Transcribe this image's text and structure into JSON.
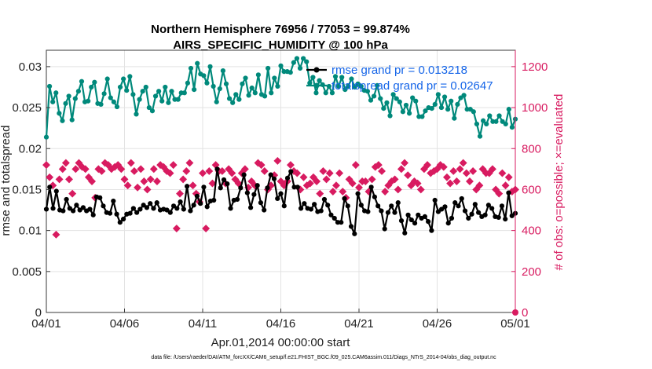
{
  "chart_data": {
    "type": "line",
    "title": "Northern Hemisphere 76956 / 77053 = 99.874%",
    "subtitle": "AIRS_SPECIFIC_HUMIDITY @ 100 hPa",
    "xlabel": "Apr.01,2014 00:00:00 start",
    "ylabel": "rmse and totalspread",
    "y2label": "# of obs: o=possible; ×=evaluated",
    "xlim": [
      0,
      30
    ],
    "ylim": [
      0,
      0.032
    ],
    "y2lim": [
      0,
      1280
    ],
    "x_ticks": [
      0,
      5,
      10,
      15,
      20,
      25,
      30
    ],
    "x_tick_labels": [
      "04/01",
      "04/06",
      "04/11",
      "04/16",
      "04/21",
      "04/26",
      "05/01"
    ],
    "y_ticks": [
      0,
      0.005,
      0.01,
      0.015,
      0.02,
      0.025,
      0.03
    ],
    "y_tick_labels": [
      "0",
      "0.005",
      "0.01",
      "0.015",
      "0.02",
      "0.025",
      "0.03"
    ],
    "y2_ticks": [
      0,
      200,
      400,
      600,
      800,
      1000,
      1200
    ],
    "y2_tick_labels": [
      "0",
      "200",
      "400",
      "600",
      "800",
      "1000",
      "1200"
    ],
    "grid": true,
    "legend_placement": "top-right",
    "legend": [
      "rmse grand pr = 0.013218",
      "totalspread grand pr = 0.02647"
    ],
    "colors": {
      "rmse": "#000000",
      "totalspread": "#00897b",
      "obs": "#d81b60",
      "legend_text": "#1565e8",
      "grid": "#e3e3e3"
    },
    "series": [
      {
        "values": [
          0.0126,
          0.0153,
          0.0127,
          0.0148,
          0.0125,
          0.0124,
          0.0138,
          0.0127,
          0.0124,
          0.0131,
          0.0125,
          0.0128,
          0.0124,
          0.0126,
          0.0119,
          0.0141,
          0.014,
          0.013,
          0.0122,
          0.0121,
          0.0136,
          0.012,
          0.011,
          0.0114,
          0.012,
          0.0121,
          0.0127,
          0.0122,
          0.0126,
          0.0131,
          0.0128,
          0.0133,
          0.0127,
          0.0134,
          0.0125,
          0.0126,
          0.0125,
          0.0122,
          0.013,
          0.0127,
          0.0135,
          0.0126,
          0.0154,
          0.0124,
          0.0131,
          0.0142,
          0.0133,
          0.0153,
          0.0129,
          0.0136,
          0.0137,
          0.0175,
          0.0152,
          0.0162,
          0.0157,
          0.0127,
          0.0137,
          0.0138,
          0.0152,
          0.0168,
          0.0146,
          0.0128,
          0.0144,
          0.0155,
          0.0134,
          0.0125,
          0.0152,
          0.0168,
          0.0163,
          0.0139,
          0.0145,
          0.013,
          0.0164,
          0.0172,
          0.0153,
          0.0153,
          0.0127,
          0.0133,
          0.0127,
          0.0126,
          0.0132,
          0.0123,
          0.0124,
          0.0138,
          0.0131,
          0.0119,
          0.0115,
          0.011,
          0.011,
          0.0139,
          0.013,
          0.0105,
          0.0096,
          0.0145,
          0.0131,
          0.0124,
          0.0123,
          0.0153,
          0.0141,
          0.013,
          0.0124,
          0.0102,
          0.0122,
          0.013,
          0.0122,
          0.0134,
          0.0112,
          0.0097,
          0.0119,
          0.0113,
          0.0109,
          0.0119,
          0.0115,
          0.0117,
          0.0111,
          0.01,
          0.0137,
          0.0123,
          0.0126,
          0.0129,
          0.0109,
          0.0115,
          0.0134,
          0.013,
          0.0139,
          0.0124,
          0.0115,
          0.012,
          0.0132,
          0.0122,
          0.0117,
          0.0119,
          0.0131,
          0.0127,
          0.0117,
          0.0116,
          0.013,
          0.0114,
          0.0146,
          0.0118,
          0.0121
        ],
        "x_start": 0,
        "x_end": 30
      },
      {
        "values": [
          0.0214,
          0.0276,
          0.0257,
          0.0268,
          0.0243,
          0.0234,
          0.0255,
          0.0264,
          0.0235,
          0.0261,
          0.027,
          0.0282,
          0.0257,
          0.0258,
          0.0275,
          0.0281,
          0.0255,
          0.0254,
          0.0267,
          0.0285,
          0.0262,
          0.0257,
          0.0251,
          0.0275,
          0.0285,
          0.0271,
          0.0288,
          0.0266,
          0.0242,
          0.026,
          0.027,
          0.0275,
          0.025,
          0.0246,
          0.0264,
          0.027,
          0.0258,
          0.0275,
          0.0256,
          0.027,
          0.026,
          0.026,
          0.0268,
          0.0268,
          0.028,
          0.0298,
          0.0272,
          0.0304,
          0.0291,
          0.0289,
          0.028,
          0.03,
          0.0276,
          0.0257,
          0.0273,
          0.0295,
          0.0279,
          0.0261,
          0.0256,
          0.0266,
          0.026,
          0.0279,
          0.0286,
          0.0265,
          0.0274,
          0.0268,
          0.029,
          0.0266,
          0.0264,
          0.0298,
          0.0268,
          0.0286,
          0.0276,
          0.0301,
          0.0294,
          0.0294,
          0.0293,
          0.0305,
          0.031,
          0.0298,
          0.031,
          0.0306,
          0.028,
          0.0287,
          0.0268,
          0.0283,
          0.0278,
          0.0268,
          0.0276,
          0.0268,
          0.0288,
          0.0276,
          0.0287,
          0.0272,
          0.0276,
          0.0285,
          0.0275,
          0.0279,
          0.0276,
          0.0271,
          0.027,
          0.0259,
          0.0264,
          0.0277,
          0.0261,
          0.0249,
          0.0256,
          0.024,
          0.0266,
          0.0261,
          0.0257,
          0.0245,
          0.0253,
          0.0243,
          0.0262,
          0.0258,
          0.0239,
          0.0239,
          0.0246,
          0.025,
          0.0249,
          0.0254,
          0.0266,
          0.025,
          0.0263,
          0.0248,
          0.0258,
          0.0237,
          0.0254,
          0.0262,
          0.0265,
          0.0248,
          0.0248,
          0.0245,
          0.023,
          0.0215,
          0.0234,
          0.023,
          0.024,
          0.0233,
          0.0233,
          0.024,
          0.0233,
          0.023,
          0.0248,
          0.0226,
          0.0236
        ],
        "x_start": 0,
        "x_end": 30
      },
      {
        "values": [
          720,
          660,
          620,
          380,
          650,
          700,
          730,
          650,
          580,
          700,
          730,
          710,
          700,
          660,
          640,
          560,
          700,
          690,
          730,
          720,
          700,
          710,
          720,
          700,
          650,
          620,
          730,
          690,
          610,
          700,
          640,
          600,
          650,
          700,
          640,
          720,
          710,
          690,
          680,
          720,
          410,
          580,
          650,
          690,
          730,
          620,
          580,
          540,
          680,
          410,
          690,
          630,
          720,
          690,
          690,
          630,
          700,
          680,
          650,
          630,
          680,
          700,
          610,
          640,
          620,
          730,
          720,
          690,
          600,
          620,
          670,
          740,
          640,
          620,
          640,
          720,
          690,
          680,
          600,
          660,
          620,
          630,
          660,
          640,
          580,
          690,
          650,
          680,
          590,
          620,
          680,
          590,
          560,
          650,
          630,
          720,
          610,
          640,
          640,
          590,
          650,
          710,
          720,
          690,
          590,
          620,
          640,
          650,
          600,
          700,
          730,
          670,
          620,
          640,
          630,
          600,
          700,
          720,
          680,
          690,
          700,
          720,
          710,
          660,
          630,
          690,
          640,
          700,
          730,
          680,
          640,
          690,
          600,
          620,
          700,
          680,
          680,
          700,
          600,
          580,
          680,
          620,
          660,
          590,
          600
        ],
        "x_start": 0,
        "x_end": 30
      },
      {
        "values": [
          0
        ],
        "x": [
          30
        ]
      }
    ],
    "footnote": "data file: /Users/raeder/DAI/ATM_forcXX/CAM6_setup/f.e21.FHIST_BGC.f09_025.CAM6assim.011/Diags_NTrS_2014-04/obs_diag_output.nc"
  }
}
